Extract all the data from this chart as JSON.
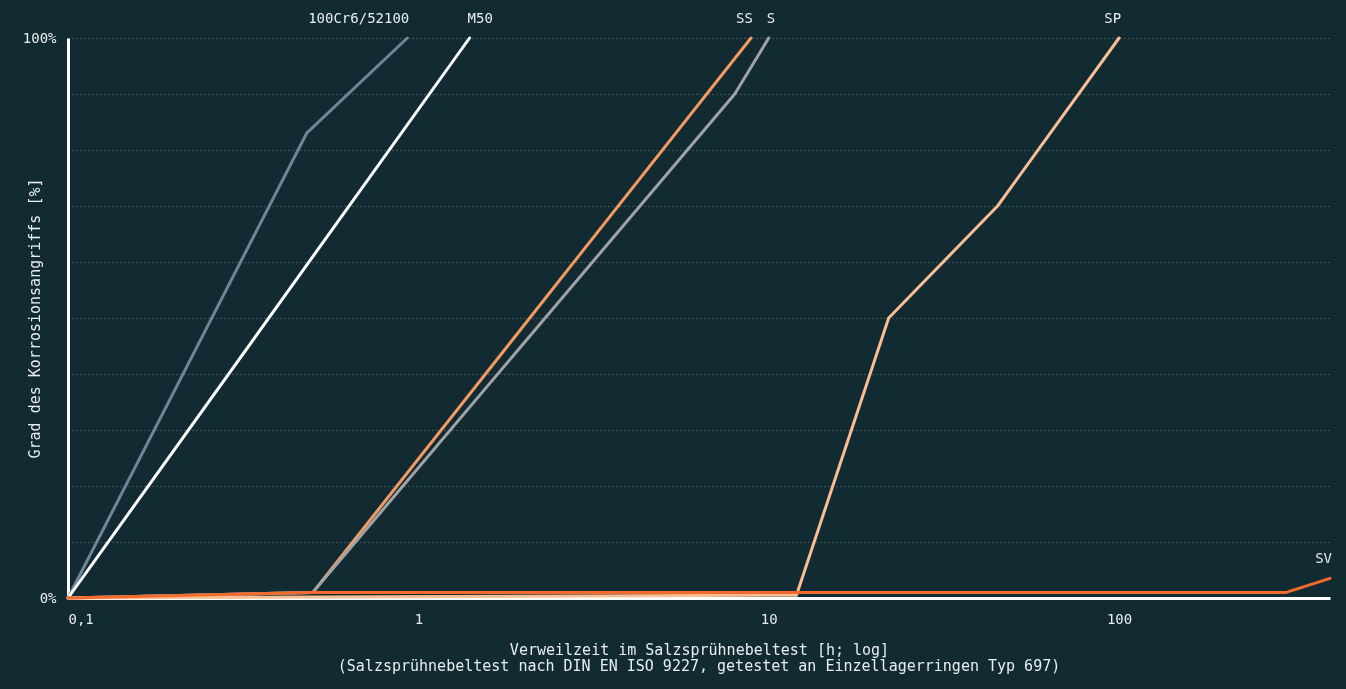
{
  "chart_data": {
    "type": "line",
    "xlabel": "Verweilzeit im Salzsprühnebeltest [h; log]",
    "ylabel": "Grad des Korrosionsangriffs [%]",
    "annotations": [
      "(Salzsprühnebeltest nach DIN EN ISO 9227, getestet an Einzellagerringen Typ 697)"
    ],
    "log": "x",
    "xlim": [
      0.1,
      400
    ],
    "xticks": [
      {
        "value": 0.1,
        "label": "0,1"
      },
      1,
      10,
      100
    ],
    "ylim": [
      0,
      100
    ],
    "yticks": [
      {
        "value": 0,
        "label": "0%"
      },
      {
        "value": 10,
        "label": null
      },
      {
        "value": 20,
        "label": null
      },
      {
        "value": 30,
        "label": null
      },
      {
        "value": 40,
        "label": null
      },
      {
        "value": 50,
        "label": null
      },
      {
        "value": 60,
        "label": null
      },
      {
        "value": 70,
        "label": null
      },
      {
        "value": 80,
        "label": null
      },
      {
        "value": 90,
        "label": null
      },
      {
        "value": 100,
        "label": "100%"
      }
    ],
    "grid": "y",
    "legend": false,
    "line_style": "solid",
    "marker": "none",
    "series": [
      {
        "name": "100Cr6/52100",
        "color": "#6e8796",
        "x": [
          0.1,
          0.48,
          0.93
        ],
        "values": [
          0,
          83,
          100
        ]
      },
      {
        "name": "M50",
        "color": "#ffffff",
        "x": [
          0.1,
          1.4
        ],
        "values": [
          0,
          100
        ]
      },
      {
        "name": "SS",
        "color": "#f39a62",
        "x": [
          0.1,
          0.5,
          8.9
        ],
        "values": [
          0,
          1,
          100
        ]
      },
      {
        "name": "S",
        "color": "#9fa3a6",
        "x": [
          0.1,
          0.5,
          8,
          10
        ],
        "values": [
          0,
          1,
          90,
          100
        ]
      },
      {
        "name": "SP",
        "color": "#f8be94",
        "x": [
          0.1,
          12,
          22,
          45,
          100
        ],
        "values": [
          0,
          0.5,
          50,
          70,
          100
        ]
      },
      {
        "name": "SV",
        "color": "#f26b2c",
        "x": [
          0.1,
          0.5,
          300,
          400
        ],
        "values": [
          0,
          1,
          1,
          3.5
        ]
      }
    ]
  }
}
